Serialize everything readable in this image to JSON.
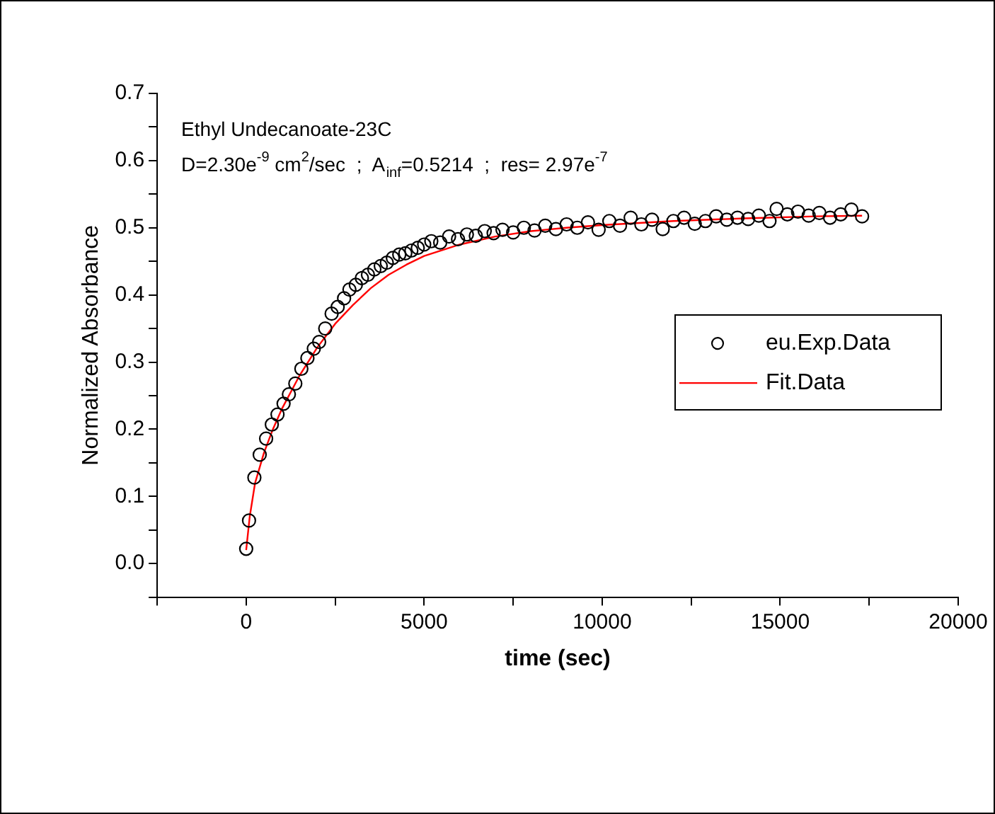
{
  "chart_data": {
    "type": "scatter",
    "xlabel": "time (sec)",
    "ylabel": "Normalized Absorbance",
    "annotations": [
      "Ethyl Undecanoate-23C",
      "D=2.30e$^{-9}$ cm$^{2}$/sec  ;  A$_{inf}$=0.5214  ;  res= 2.97e$^{-7}$"
    ],
    "xlim": [
      -2500,
      20000
    ],
    "ylim": [
      -0.05,
      0.7
    ],
    "xticks": [
      {
        "value": -2500,
        "label": null
      },
      0,
      {
        "value": 2500,
        "label": null
      },
      5000,
      {
        "value": 7500,
        "label": null
      },
      10000,
      {
        "value": 12500,
        "label": null
      },
      15000,
      {
        "value": 17500,
        "label": null
      },
      20000
    ],
    "yticks": [
      {
        "value": -0.05,
        "label": null
      },
      {
        "value": 0,
        "label": "0.0"
      },
      {
        "value": 0.05,
        "label": null
      },
      0.1,
      {
        "value": 0.15,
        "label": null
      },
      0.2,
      {
        "value": 0.25,
        "label": null
      },
      0.3,
      {
        "value": 0.35,
        "label": null
      },
      0.4,
      {
        "value": 0.45,
        "label": null
      },
      0.5,
      {
        "value": 0.55,
        "label": null
      },
      0.6,
      {
        "value": 0.65,
        "label": null
      },
      0.7
    ],
    "grid": false,
    "legend": "right",
    "marker": "circle",
    "series": [
      {
        "name": "eu.Exp.Data",
        "color": "#000000",
        "x": [
          0,
          80,
          230,
          380,
          560,
          720,
          880,
          1050,
          1200,
          1380,
          1550,
          1720,
          1900,
          2050,
          2220,
          2400,
          2570,
          2750,
          2900,
          3080,
          3250,
          3420,
          3600,
          3780,
          3950,
          4120,
          4300,
          4470,
          4640,
          4820,
          5000,
          5200,
          5450,
          5700,
          5950,
          6200,
          6450,
          6700,
          6950,
          7200,
          7500,
          7800,
          8100,
          8400,
          8700,
          9000,
          9300,
          9600,
          9900,
          10200,
          10500,
          10800,
          11100,
          11400,
          11700,
          12000,
          12300,
          12600,
          12900,
          13200,
          13500,
          13800,
          14100,
          14400,
          14700,
          14900,
          15200,
          15500,
          15800,
          16100,
          16400,
          16700,
          17000,
          17300
        ],
        "values": [
          0.022,
          0.064,
          0.128,
          0.162,
          0.186,
          0.207,
          0.222,
          0.238,
          0.252,
          0.268,
          0.29,
          0.306,
          0.32,
          0.33,
          0.35,
          0.372,
          0.382,
          0.395,
          0.408,
          0.415,
          0.425,
          0.43,
          0.438,
          0.443,
          0.448,
          0.455,
          0.46,
          0.462,
          0.466,
          0.47,
          0.475,
          0.48,
          0.478,
          0.487,
          0.483,
          0.49,
          0.488,
          0.495,
          0.492,
          0.497,
          0.493,
          0.5,
          0.496,
          0.503,
          0.498,
          0.505,
          0.5,
          0.508,
          0.497,
          0.51,
          0.503,
          0.515,
          0.505,
          0.512,
          0.498,
          0.51,
          0.515,
          0.506,
          0.51,
          0.517,
          0.512,
          0.515,
          0.513,
          0.518,
          0.51,
          0.528,
          0.52,
          0.524,
          0.518,
          0.522,
          0.515,
          0.52,
          0.527,
          0.517
        ]
      },
      {
        "name": "Fit.Data",
        "type": "line",
        "marker": "none",
        "color": "#ff0000",
        "x": [
          0,
          100,
          250,
          500,
          750,
          1000,
          1500,
          2000,
          2500,
          3000,
          3500,
          4000,
          4500,
          5000,
          6000,
          7000,
          8000,
          9000,
          10000,
          12000,
          14000,
          16000,
          17300
        ],
        "values": [
          0.02,
          0.07,
          0.12,
          0.165,
          0.2,
          0.23,
          0.28,
          0.322,
          0.357,
          0.385,
          0.41,
          0.43,
          0.445,
          0.458,
          0.475,
          0.487,
          0.495,
          0.5,
          0.504,
          0.51,
          0.514,
          0.517,
          0.518
        ]
      }
    ]
  }
}
